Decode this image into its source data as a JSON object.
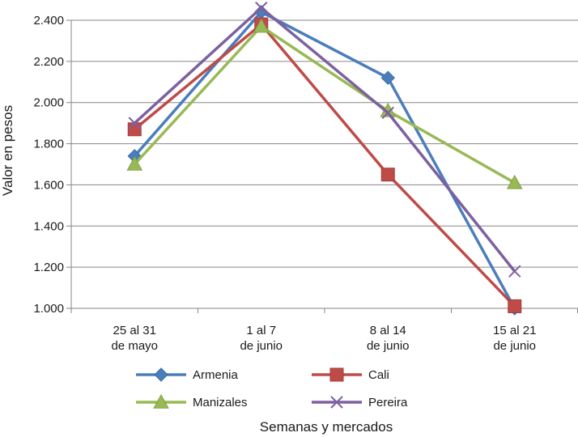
{
  "chart_data": {
    "type": "line",
    "title": "",
    "xlabel": "Semanas y mercados",
    "ylabel": "Valor en pesos",
    "categories": [
      [
        "25 al 31",
        "de mayo"
      ],
      [
        "1 al 7",
        "de junio"
      ],
      [
        "8 al 14",
        "de junio"
      ],
      [
        "15 al 21",
        "de junio"
      ]
    ],
    "ylim": [
      1000,
      2400
    ],
    "yticks": [
      1000,
      1200,
      1400,
      1600,
      1800,
      2000,
      2200,
      2400
    ],
    "ytick_labels": [
      "1.000",
      "1.200",
      "1.400",
      "1.600",
      "1.800",
      "2.000",
      "2.200",
      "2.400"
    ],
    "grid": "horizontal",
    "legend_position": "bottom",
    "series": [
      {
        "name": "Armenia",
        "values": [
          1740,
          2440,
          2120,
          1000
        ],
        "color": "#4a7ebb",
        "marker": "diamond"
      },
      {
        "name": "Cali",
        "values": [
          1870,
          2380,
          1650,
          1010
        ],
        "color": "#be4b48",
        "marker": "square"
      },
      {
        "name": "Manizales",
        "values": [
          1700,
          2370,
          1960,
          1610
        ],
        "color": "#98b954",
        "marker": "triangle"
      },
      {
        "name": "Pereira",
        "values": [
          1900,
          2460,
          1950,
          1180
        ],
        "color": "#7d60a0",
        "marker": "x"
      }
    ]
  }
}
